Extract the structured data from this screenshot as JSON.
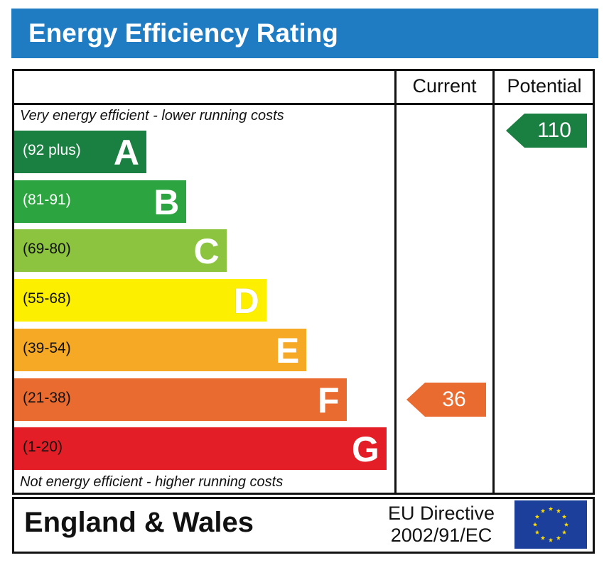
{
  "header": {
    "title": "Energy Efficiency Rating",
    "color": "#1f7cc2"
  },
  "columns": {
    "current": "Current",
    "potential": "Potential"
  },
  "captions": {
    "top": "Very energy efficient - lower running costs",
    "bottom": "Not energy efficient - higher running costs"
  },
  "footer": {
    "region": "England & Wales",
    "directive_line1": "EU Directive",
    "directive_line2": "2002/91/EC"
  },
  "chart_data": {
    "type": "bar",
    "title": "Energy Efficiency Rating",
    "categories": [
      "A",
      "B",
      "C",
      "D",
      "E",
      "F",
      "G"
    ],
    "bands": [
      {
        "letter": "A",
        "range": "(92 plus)",
        "min": 92,
        "max": null,
        "color": "#1a8042",
        "text_color": "#ffffff"
      },
      {
        "letter": "B",
        "range": "(81-91)",
        "min": 81,
        "max": 91,
        "color": "#2ca541",
        "text_color": "#ffffff"
      },
      {
        "letter": "C",
        "range": "(69-80)",
        "min": 69,
        "max": 80,
        "color": "#8cc43f",
        "text_color": "#ffffff"
      },
      {
        "letter": "D",
        "range": "(55-68)",
        "min": 55,
        "max": 68,
        "color": "#fdef00",
        "text_color": "#ffffff"
      },
      {
        "letter": "E",
        "range": "(39-54)",
        "min": 39,
        "max": 54,
        "color": "#f6a924",
        "text_color": "#ffffff"
      },
      {
        "letter": "F",
        "range": "(21-38)",
        "min": 21,
        "max": 38,
        "color": "#ea6b2f",
        "text_color": "#ffffff"
      },
      {
        "letter": "G",
        "range": "(1-20)",
        "min": 1,
        "max": 20,
        "color": "#e31e27",
        "text_color": "#ffffff"
      }
    ],
    "current": {
      "label": "Current",
      "value": 36,
      "band": "F",
      "color": "#ea6b2f"
    },
    "potential": {
      "label": "Potential",
      "value": 110,
      "band": "A",
      "color": "#1a8042"
    }
  }
}
